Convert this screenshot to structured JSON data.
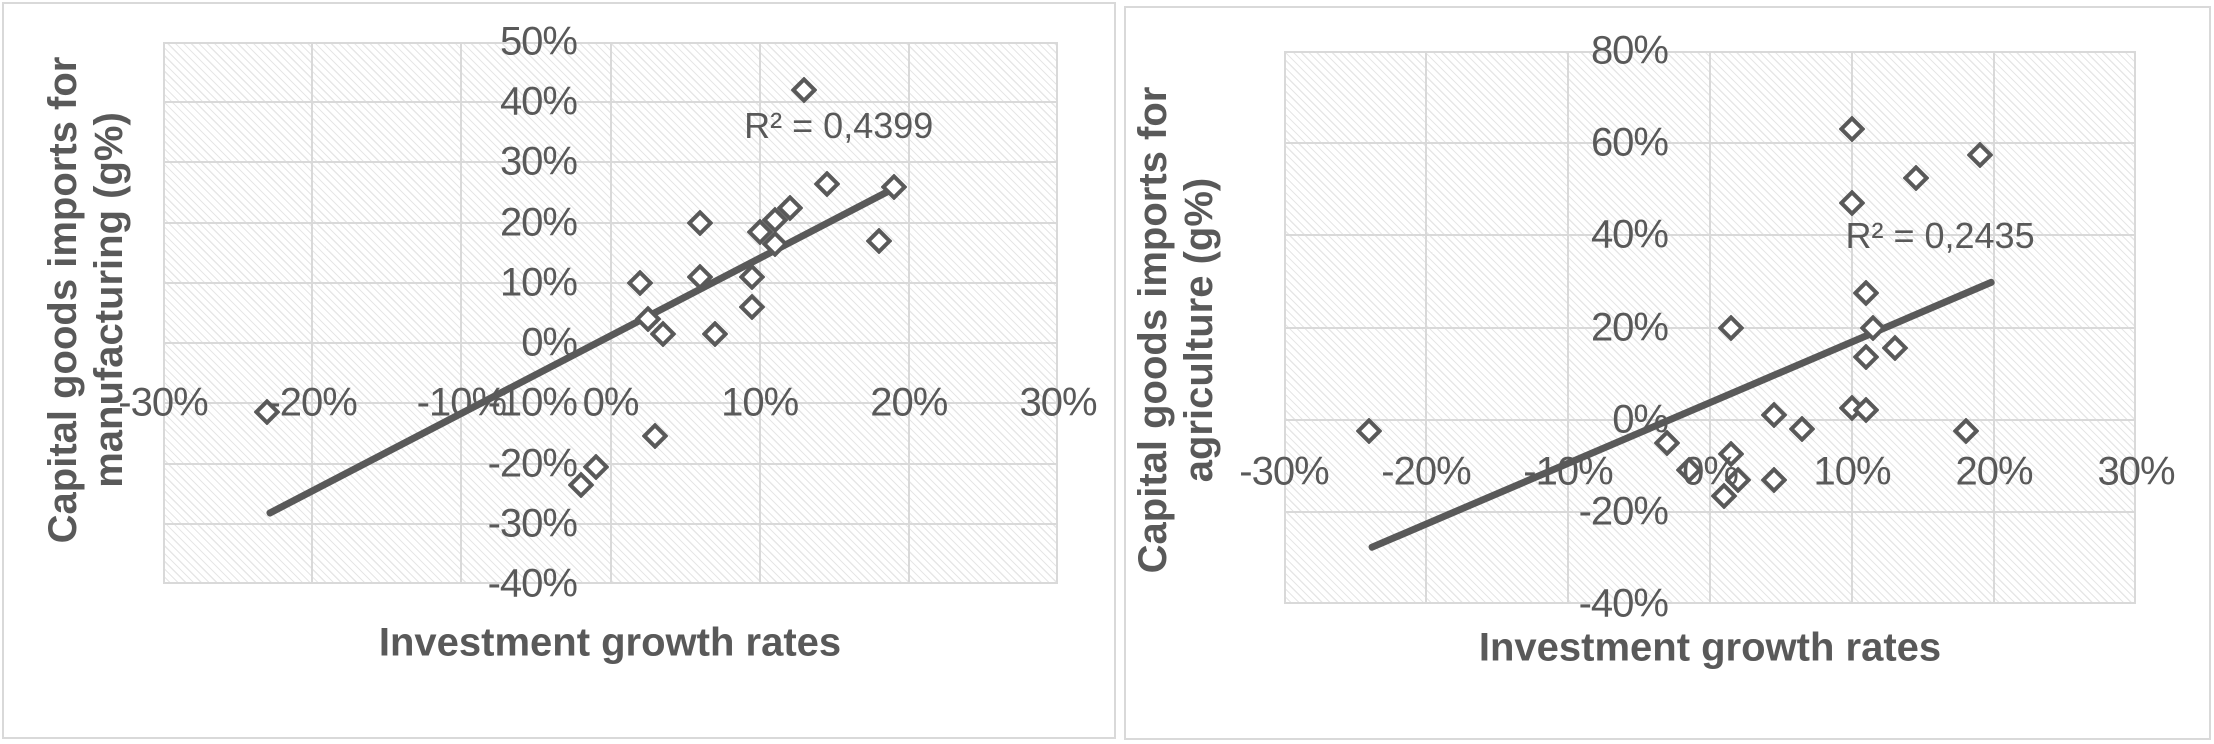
{
  "page": {
    "background_color": "#ffffff",
    "text_color": "#595959",
    "grid_color": "#d9d9d9",
    "marker_color": "#595959",
    "trend_color": "#595959"
  },
  "charts": [
    {
      "y_axis_title_line1": "Capital goods imports for",
      "y_axis_title_line2": "manufacturing (g%)",
      "x_axis_title": "Investment growth rates",
      "r2_label": "R² = 0,4399",
      "chart_data": {
        "type": "scatter",
        "title": "",
        "xlabel": "Investment growth rates",
        "ylabel": "Capital goods imports for manufacturing (g%)",
        "xlim": [
          -30,
          30
        ],
        "ylim": [
          -40,
          50
        ],
        "grid": true,
        "legend": "none",
        "marker": "open-diamond",
        "x_tick_values": [
          -30,
          -20,
          -10,
          0,
          10,
          20,
          30
        ],
        "x_tick_labels": [
          "-30%",
          "-20%",
          "-10%",
          "0%",
          "10%",
          "20%",
          "30%"
        ],
        "y_tick_values": [
          50,
          40,
          30,
          20,
          10,
          0,
          -10,
          -20,
          -30,
          -40
        ],
        "y_tick_labels": [
          "50%",
          "40%",
          "30%",
          "20%",
          "10%",
          "0%",
          "-10%",
          "-20%",
          "-30%",
          "-40%"
        ],
        "points": [
          [
            -23,
            -11.5
          ],
          [
            -2,
            -23.5
          ],
          [
            -1,
            -20.5
          ],
          [
            3,
            -15.5
          ],
          [
            2.5,
            4
          ],
          [
            3.5,
            1.5
          ],
          [
            7,
            1.5
          ],
          [
            2,
            10
          ],
          [
            6,
            11
          ],
          [
            6,
            20
          ],
          [
            9.5,
            6
          ],
          [
            9.5,
            11
          ],
          [
            11,
            16.5
          ],
          [
            10,
            18.5
          ],
          [
            11,
            20.5
          ],
          [
            12,
            22.5
          ],
          [
            18,
            17
          ],
          [
            13,
            42
          ],
          [
            14.5,
            26.5
          ],
          [
            19,
            26
          ]
        ],
        "trendline": {
          "x1": -23,
          "y1": -28.5,
          "x2": 19.3,
          "y2": 26
        },
        "r2_text": "R² = 0,4399",
        "r2_position": [
          15.3,
          36
        ]
      }
    },
    {
      "y_axis_title_line1": "Capital goods imports for",
      "y_axis_title_line2": "agriculture (g%)",
      "x_axis_title": "Investment growth rates",
      "r2_label": "R² = 0,2435",
      "chart_data": {
        "type": "scatter",
        "title": "",
        "xlabel": "Investment growth rates",
        "ylabel": "Capital goods imports for agriculture (g%)",
        "xlim": [
          -30,
          30
        ],
        "ylim": [
          -40,
          80
        ],
        "grid": true,
        "legend": "none",
        "marker": "open-diamond",
        "x_tick_values": [
          -30,
          -20,
          -10,
          0,
          10,
          20,
          30
        ],
        "x_tick_labels": [
          "-30%",
          "-20%",
          "-10%",
          "0%",
          "10%",
          "20%",
          "30%"
        ],
        "y_tick_values": [
          80,
          60,
          40,
          20,
          0,
          -20,
          -40
        ],
        "y_tick_labels": [
          "80%",
          "60%",
          "40%",
          "20%",
          "0%",
          "-20%",
          "-40%"
        ],
        "points": [
          [
            -24,
            -2.5
          ],
          [
            -3,
            -5
          ],
          [
            -1.5,
            -11
          ],
          [
            1,
            -16.5
          ],
          [
            2,
            -13
          ],
          [
            4.5,
            -13
          ],
          [
            1.5,
            -7.5
          ],
          [
            4.5,
            1
          ],
          [
            6.5,
            -2
          ],
          [
            10,
            2.5
          ],
          [
            11,
            2
          ],
          [
            18,
            -2.5
          ],
          [
            1.5,
            20
          ],
          [
            11,
            27.5
          ],
          [
            11.5,
            20
          ],
          [
            11,
            13.5
          ],
          [
            13,
            15.5
          ],
          [
            10,
            63
          ],
          [
            10,
            47
          ],
          [
            14.5,
            52.5
          ],
          [
            19,
            57.5
          ]
        ],
        "trendline": {
          "x1": -24,
          "y1": -28,
          "x2": 20,
          "y2": 30
        },
        "r2_text": "R² = 0,2435",
        "r2_position": [
          16.2,
          39.8
        ]
      }
    }
  ]
}
